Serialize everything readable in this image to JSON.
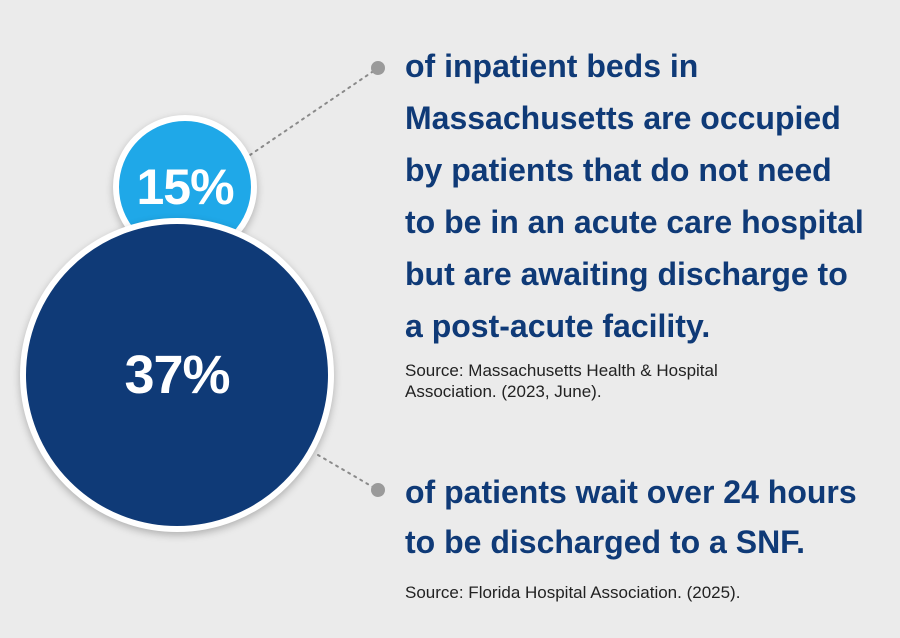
{
  "stat1": {
    "value": "15%",
    "text": "of inpatient beds in\nMassachusetts are occupied\nby patients that do not need\nto  be in an acute care hospital\nbut are awaiting discharge to\na post-acute facility.",
    "source": "Source: Massachusetts Health & Hospital\nAssociation. (2023, June)."
  },
  "stat2": {
    "value": "37%",
    "text": "of patients wait over 24 hours\nto be discharged to a SNF.",
    "source": "Source: Florida Hospital Association. (2025)."
  },
  "colors": {
    "background": "#ebebeb",
    "navy": "#0f3a77",
    "light_blue": "#1fa8e8",
    "connector_dot": "#9a9a9a"
  }
}
